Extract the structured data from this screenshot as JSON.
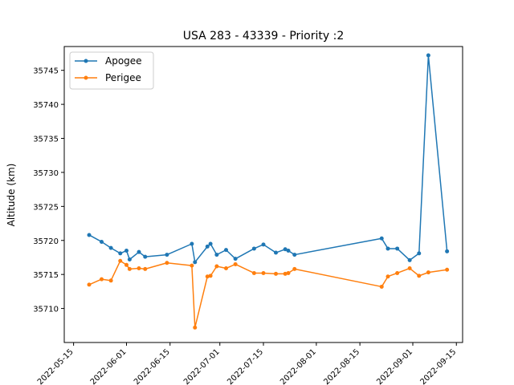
{
  "chart_data": {
    "type": "line",
    "title": "USA 283 - 43339 - Priority :2",
    "xlabel": "",
    "ylabel": "Altitude (km)",
    "xlim": [
      "2022-05-12",
      "2022-09-17"
    ],
    "ylim": [
      35705.0,
      35748.5
    ],
    "x_ticks": [
      "2022-05-15",
      "2022-06-01",
      "2022-06-15",
      "2022-07-01",
      "2022-07-15",
      "2022-08-01",
      "2022-08-15",
      "2022-09-01",
      "2022-09-15"
    ],
    "y_ticks": [
      35710,
      35715,
      35720,
      35725,
      35730,
      35735,
      35740,
      35745
    ],
    "grid": false,
    "legend_position": "top-left",
    "series": [
      {
        "name": "Apogee",
        "color": "#1f77b4",
        "x": [
          "2022-05-20",
          "2022-05-24",
          "2022-05-27",
          "2022-05-30",
          "2022-06-01",
          "2022-06-02",
          "2022-06-05",
          "2022-06-07",
          "2022-06-14",
          "2022-06-22",
          "2022-06-23",
          "2022-06-27",
          "2022-06-28",
          "2022-06-30",
          "2022-07-03",
          "2022-07-06",
          "2022-07-12",
          "2022-07-15",
          "2022-07-19",
          "2022-07-22",
          "2022-07-23",
          "2022-07-25",
          "2022-08-22",
          "2022-08-24",
          "2022-08-27",
          "2022-08-31",
          "2022-09-03",
          "2022-09-06",
          "2022-09-12"
        ],
        "y": [
          35720.8,
          35719.8,
          35718.9,
          35718.1,
          35718.5,
          35717.2,
          35718.3,
          35717.6,
          35717.9,
          35719.5,
          35716.8,
          35719.1,
          35719.5,
          35717.9,
          35718.6,
          35717.3,
          35718.8,
          35719.4,
          35718.2,
          35718.7,
          35718.5,
          35717.9,
          35720.3,
          35718.8,
          35718.8,
          35717.1,
          35718.1,
          35747.2,
          35718.4
        ]
      },
      {
        "name": "Perigee",
        "color": "#ff7f0e",
        "x": [
          "2022-05-20",
          "2022-05-24",
          "2022-05-27",
          "2022-05-30",
          "2022-06-01",
          "2022-06-02",
          "2022-06-05",
          "2022-06-07",
          "2022-06-14",
          "2022-06-22",
          "2022-06-23",
          "2022-06-27",
          "2022-06-28",
          "2022-06-30",
          "2022-07-03",
          "2022-07-06",
          "2022-07-12",
          "2022-07-15",
          "2022-07-19",
          "2022-07-22",
          "2022-07-23",
          "2022-07-25",
          "2022-08-22",
          "2022-08-24",
          "2022-08-27",
          "2022-08-31",
          "2022-09-03",
          "2022-09-06",
          "2022-09-12"
        ],
        "y": [
          35713.5,
          35714.3,
          35714.1,
          35717.0,
          35716.4,
          35715.8,
          35715.9,
          35715.8,
          35716.7,
          35716.3,
          35707.2,
          35714.7,
          35714.8,
          35716.2,
          35715.9,
          35716.5,
          35715.2,
          35715.2,
          35715.1,
          35715.1,
          35715.2,
          35715.8,
          35713.2,
          35714.7,
          35715.2,
          35715.9,
          35714.8,
          35715.3,
          35715.7
        ]
      }
    ]
  }
}
